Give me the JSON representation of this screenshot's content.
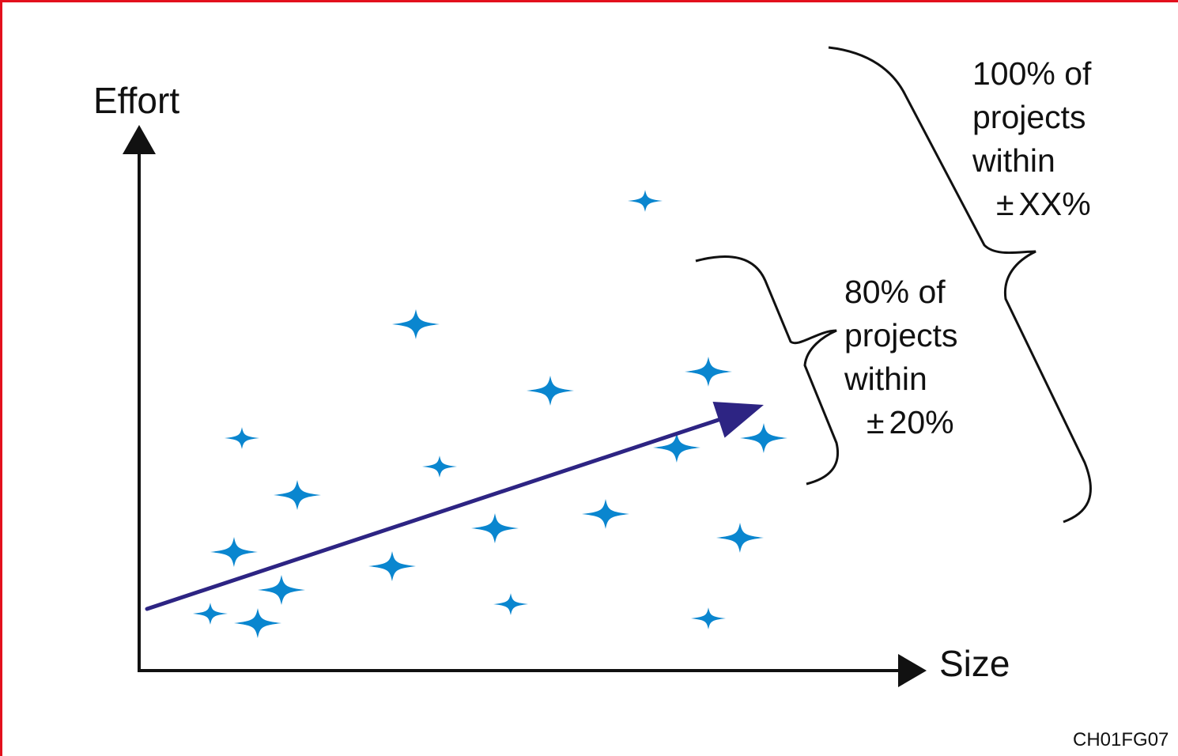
{
  "colors": {
    "frame": "#e3101d",
    "star": "#0a86cf",
    "trend": "#2d2483",
    "axis": "#111111"
  },
  "labels": {
    "y_axis": "Effort",
    "x_axis": "Size",
    "figure_id": "CH01FG07",
    "outer_band": {
      "line1": "100% of",
      "line2": "projects",
      "line3": "within",
      "pm": "±",
      "value": "XX%"
    },
    "inner_band": {
      "line1": "80% of",
      "line2": "projects",
      "line3": "within",
      "pm": "±",
      "value": "20%"
    }
  },
  "chart_data": {
    "type": "scatter",
    "xlabel": "Size",
    "ylabel": "Effort",
    "x_ticks": [],
    "y_ticks": [],
    "grid": false,
    "points": [
      {
        "x": 12,
        "y": 25
      },
      {
        "x": 9,
        "y": 12
      },
      {
        "x": 15,
        "y": 10
      },
      {
        "x": 18,
        "y": 17
      },
      {
        "x": 13,
        "y": 49
      },
      {
        "x": 20,
        "y": 37
      },
      {
        "x": 32,
        "y": 22
      },
      {
        "x": 38,
        "y": 43
      },
      {
        "x": 35,
        "y": 73
      },
      {
        "x": 45,
        "y": 30
      },
      {
        "x": 47,
        "y": 14
      },
      {
        "x": 52,
        "y": 59
      },
      {
        "x": 59,
        "y": 33
      },
      {
        "x": 64,
        "y": 99
      },
      {
        "x": 68,
        "y": 47
      },
      {
        "x": 72,
        "y": 63
      },
      {
        "x": 72,
        "y": 11
      },
      {
        "x": 76,
        "y": 28
      },
      {
        "x": 79,
        "y": 49
      }
    ],
    "trend_line": {
      "from": [
        1,
        13
      ],
      "to": [
        79,
        56
      ]
    },
    "bands": [
      {
        "label": "80% of projects within ±20%",
        "y_range": [
          34,
          82
        ]
      },
      {
        "label": "100% of projects within ±XX%",
        "y_range": [
          26,
          115
        ]
      }
    ],
    "xlim": [
      0,
      95
    ],
    "ylim": [
      0,
      115
    ]
  }
}
